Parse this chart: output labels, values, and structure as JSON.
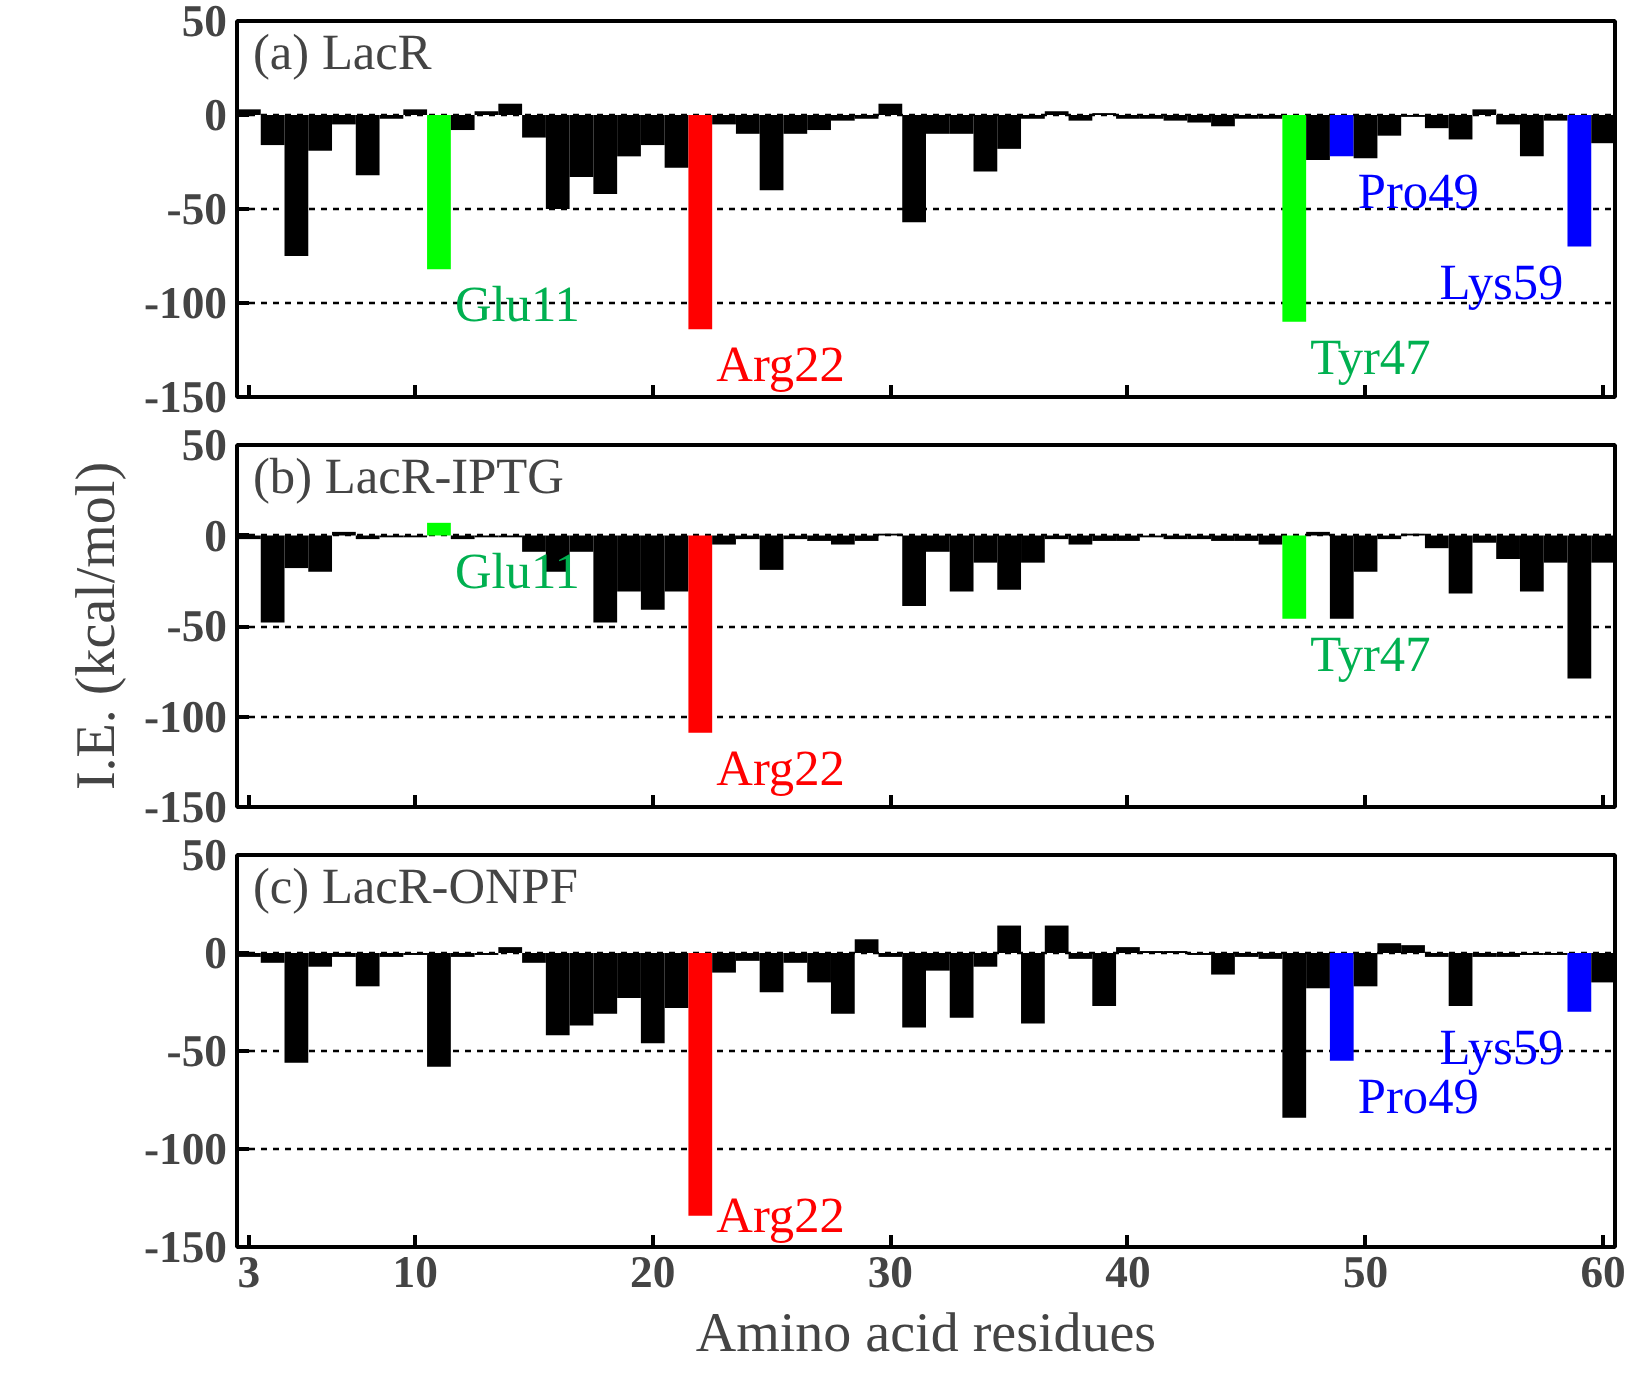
{
  "chart_data": [
    {
      "type": "bar",
      "title": "(a) LacR",
      "x": [
        3,
        4,
        5,
        6,
        7,
        8,
        9,
        10,
        11,
        12,
        13,
        14,
        15,
        16,
        17,
        18,
        19,
        20,
        21,
        22,
        23,
        24,
        25,
        26,
        27,
        28,
        29,
        30,
        31,
        32,
        33,
        34,
        35,
        36,
        37,
        38,
        39,
        40,
        41,
        42,
        43,
        44,
        45,
        46,
        47,
        48,
        49,
        50,
        51,
        52,
        53,
        54,
        55,
        56,
        57,
        58,
        59,
        60
      ],
      "values": [
        3,
        -16,
        -75,
        -19,
        -5,
        -32,
        -2,
        3,
        -82,
        -8,
        2,
        6,
        -12,
        -50,
        -33,
        -42,
        -22,
        -16,
        -28,
        -114,
        -5,
        -10,
        -40,
        -10,
        -8,
        -3,
        -2,
        6,
        -57,
        -10,
        -10,
        -30,
        -18,
        -2,
        2,
        -3,
        1,
        -2,
        -2,
        -3,
        -4,
        -6,
        -2,
        -2,
        -110,
        -24,
        -22,
        -23,
        -11,
        -1,
        -7,
        -13,
        3,
        -5,
        -22,
        -3,
        -70,
        -15
      ],
      "colors": [
        "#000000",
        "#000000",
        "#000000",
        "#000000",
        "#000000",
        "#000000",
        "#000000",
        "#000000",
        "#00ff00",
        "#000000",
        "#000000",
        "#000000",
        "#000000",
        "#000000",
        "#000000",
        "#000000",
        "#000000",
        "#000000",
        "#000000",
        "#ff0000",
        "#000000",
        "#000000",
        "#000000",
        "#000000",
        "#000000",
        "#000000",
        "#000000",
        "#000000",
        "#000000",
        "#000000",
        "#000000",
        "#000000",
        "#000000",
        "#000000",
        "#000000",
        "#000000",
        "#000000",
        "#000000",
        "#000000",
        "#000000",
        "#000000",
        "#000000",
        "#000000",
        "#000000",
        "#00ff00",
        "#000000",
        "#0000ff",
        "#000000",
        "#000000",
        "#000000",
        "#000000",
        "#000000",
        "#000000",
        "#000000",
        "#000000",
        "#000000",
        "#0000ff",
        "#000000"
      ],
      "xlim": [
        2.5,
        60.5
      ],
      "ylim": [
        -150,
        50
      ],
      "xticks": [
        3,
        10,
        20,
        30,
        40,
        50,
        60
      ],
      "yticks": [
        50,
        0,
        -50,
        -100,
        -150
      ],
      "grid": "y",
      "tick_labels": "y",
      "annotations": [
        "Glu11",
        "Arg22",
        "Tyr47",
        "Pro49",
        "Lys59"
      ]
    },
    {
      "type": "bar",
      "title": "(b) LacR-IPTG",
      "ylabel": "I.E. (kcal/mol)",
      "x": [
        3,
        4,
        5,
        6,
        7,
        8,
        9,
        10,
        11,
        12,
        13,
        14,
        15,
        16,
        17,
        18,
        19,
        20,
        21,
        22,
        23,
        24,
        25,
        26,
        27,
        28,
        29,
        30,
        31,
        32,
        33,
        34,
        35,
        36,
        37,
        38,
        39,
        40,
        41,
        42,
        43,
        44,
        45,
        46,
        47,
        48,
        49,
        50,
        51,
        52,
        53,
        54,
        55,
        56,
        57,
        58,
        59,
        60
      ],
      "values": [
        -2,
        -48,
        -18,
        -20,
        2,
        -2,
        -1,
        -1,
        7,
        -2,
        -1,
        -1,
        -9,
        -20,
        -9,
        -48,
        -31,
        -41,
        -31,
        -109,
        -5,
        -2,
        -19,
        -2,
        -3,
        -5,
        -3,
        1,
        -39,
        -9,
        -31,
        -15,
        -30,
        -15,
        -2,
        -5,
        -3,
        -3,
        -1,
        -2,
        -2,
        -3,
        -3,
        -5,
        -46,
        2,
        -46,
        -20,
        -2,
        1,
        -7,
        -32,
        -4,
        -13,
        -31,
        -15,
        -79,
        -15
      ],
      "colors": [
        "#000000",
        "#000000",
        "#000000",
        "#000000",
        "#000000",
        "#000000",
        "#000000",
        "#000000",
        "#00ff00",
        "#000000",
        "#000000",
        "#000000",
        "#000000",
        "#000000",
        "#000000",
        "#000000",
        "#000000",
        "#000000",
        "#000000",
        "#ff0000",
        "#000000",
        "#000000",
        "#000000",
        "#000000",
        "#000000",
        "#000000",
        "#000000",
        "#000000",
        "#000000",
        "#000000",
        "#000000",
        "#000000",
        "#000000",
        "#000000",
        "#000000",
        "#000000",
        "#000000",
        "#000000",
        "#000000",
        "#000000",
        "#000000",
        "#000000",
        "#000000",
        "#000000",
        "#00ff00",
        "#000000",
        "#000000",
        "#000000",
        "#000000",
        "#000000",
        "#000000",
        "#000000",
        "#000000",
        "#000000",
        "#000000",
        "#000000",
        "#000000",
        "#000000"
      ],
      "xlim": [
        2.5,
        60.5
      ],
      "ylim": [
        -150,
        50
      ],
      "xticks": [
        3,
        10,
        20,
        30,
        40,
        50,
        60
      ],
      "yticks": [
        50,
        0,
        -50,
        -100,
        -150
      ],
      "grid": "y",
      "tick_labels": "y",
      "annotations": [
        "Glu11",
        "Arg22",
        "Tyr47"
      ]
    },
    {
      "type": "bar",
      "title": "(c) LacR-ONPF",
      "xlabel": "Amino acid residues",
      "x": [
        3,
        4,
        5,
        6,
        7,
        8,
        9,
        10,
        11,
        12,
        13,
        14,
        15,
        16,
        17,
        18,
        19,
        20,
        21,
        22,
        23,
        24,
        25,
        26,
        27,
        28,
        29,
        30,
        31,
        32,
        33,
        34,
        35,
        36,
        37,
        38,
        39,
        40,
        41,
        42,
        43,
        44,
        45,
        46,
        47,
        48,
        49,
        50,
        51,
        52,
        53,
        54,
        55,
        56,
        57,
        58,
        59,
        60
      ],
      "values": [
        -2,
        -5,
        -56,
        -7,
        -2,
        -17,
        -2,
        -1,
        -58,
        -2,
        -1,
        3,
        -5,
        -42,
        -37,
        -31,
        -23,
        -46,
        -28,
        -134,
        -10,
        -4,
        -20,
        -5,
        -15,
        -31,
        7,
        -2,
        -38,
        -9,
        -33,
        -7,
        14,
        -36,
        14,
        -3,
        -27,
        3,
        1,
        1,
        -1,
        -11,
        -2,
        -3,
        -84,
        -18,
        -55,
        -17,
        5,
        4,
        -2,
        -27,
        -2,
        -2,
        -1,
        -1,
        -30,
        -15
      ],
      "colors": [
        "#000000",
        "#000000",
        "#000000",
        "#000000",
        "#000000",
        "#000000",
        "#000000",
        "#000000",
        "#000000",
        "#000000",
        "#000000",
        "#000000",
        "#000000",
        "#000000",
        "#000000",
        "#000000",
        "#000000",
        "#000000",
        "#000000",
        "#ff0000",
        "#000000",
        "#000000",
        "#000000",
        "#000000",
        "#000000",
        "#000000",
        "#000000",
        "#000000",
        "#000000",
        "#000000",
        "#000000",
        "#000000",
        "#000000",
        "#000000",
        "#000000",
        "#000000",
        "#000000",
        "#000000",
        "#000000",
        "#000000",
        "#000000",
        "#000000",
        "#000000",
        "#000000",
        "#000000",
        "#000000",
        "#0000ff",
        "#000000",
        "#000000",
        "#000000",
        "#000000",
        "#000000",
        "#000000",
        "#000000",
        "#000000",
        "#000000",
        "#0000ff",
        "#000000"
      ],
      "xlim": [
        2.5,
        60.5
      ],
      "ylim": [
        -150,
        50
      ],
      "xticks": [
        3,
        10,
        20,
        30,
        40,
        50,
        60
      ],
      "yticks": [
        50,
        0,
        -50,
        -100,
        -150
      ],
      "grid": "y",
      "annotations": [
        "Arg22",
        "Pro49",
        "Lys59"
      ]
    }
  ]
}
